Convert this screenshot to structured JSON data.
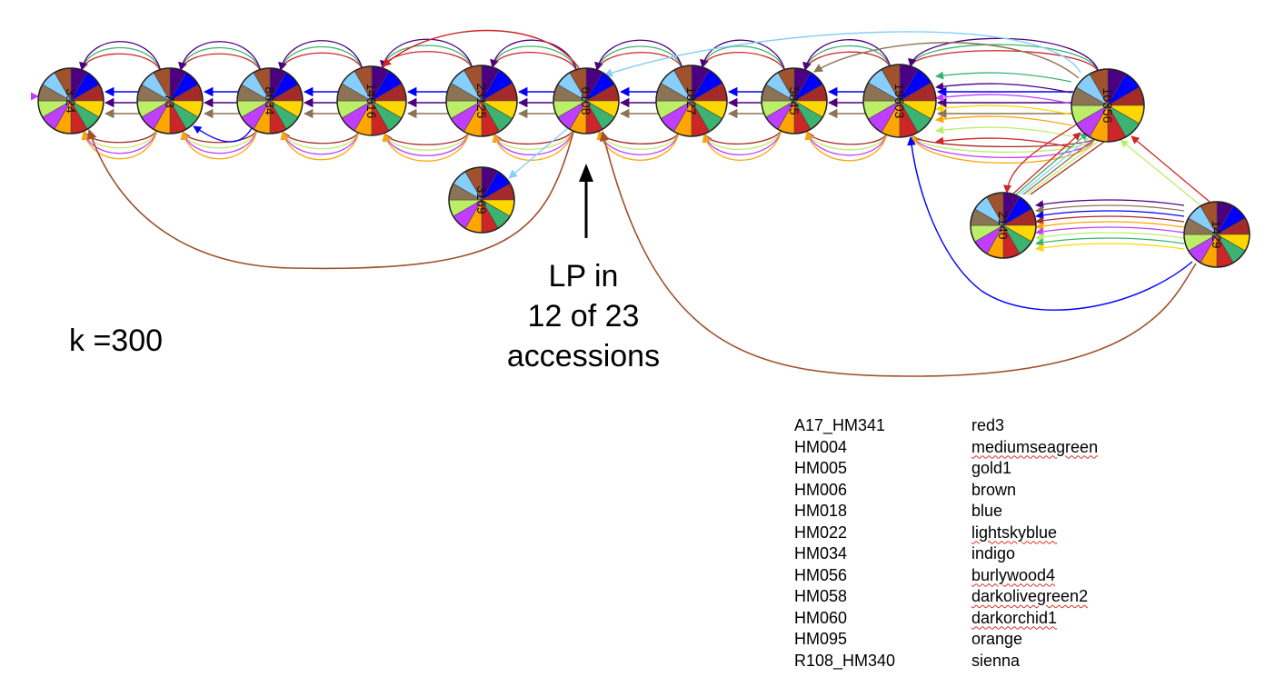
{
  "k_label": "k =300",
  "annotation": {
    "lines": [
      "LP in",
      "12 of 23",
      "accessions"
    ]
  },
  "nodes": [
    {
      "id": "n1",
      "label": "3.24"
    },
    {
      "id": "n2",
      "label": "73"
    },
    {
      "id": "n3",
      "label": "8634"
    },
    {
      "id": "n4",
      "label": "14616"
    },
    {
      "id": "n5",
      "label": "23125"
    },
    {
      "id": "n6",
      "label": "6108"
    },
    {
      "id": "n7",
      "label": "1827"
    },
    {
      "id": "n8",
      "label": "5845"
    },
    {
      "id": "n9",
      "label": "19603"
    },
    {
      "id": "n10",
      "label": "10356"
    },
    {
      "id": "n11",
      "label": "3169"
    },
    {
      "id": "n12",
      "label": "2140"
    },
    {
      "id": "n13",
      "label": "1429"
    }
  ],
  "legend": [
    {
      "accession": "A17_HM341",
      "color_name": "red3",
      "hex": "#cd2626",
      "squiggle": false
    },
    {
      "accession": "HM004",
      "color_name": "mediumseagreen",
      "hex": "#3cb371",
      "squiggle": true
    },
    {
      "accession": "HM005",
      "color_name": "gold1",
      "hex": "#ffd700",
      "squiggle": false
    },
    {
      "accession": "HM006",
      "color_name": "brown",
      "hex": "#a52a2a",
      "squiggle": false
    },
    {
      "accession": "HM018",
      "color_name": "blue",
      "hex": "#0000ff",
      "squiggle": false
    },
    {
      "accession": "HM022",
      "color_name": "lightskyblue",
      "hex": "#87cefa",
      "squiggle": true
    },
    {
      "accession": "HM034",
      "color_name": "indigo",
      "hex": "#4b0082",
      "squiggle": false
    },
    {
      "accession": "HM056",
      "color_name": "burlywood4",
      "hex": "#8b7355",
      "squiggle": true
    },
    {
      "accession": "HM058",
      "color_name": "darkolivegreen2",
      "hex": "#bcee68",
      "squiggle": true
    },
    {
      "accession": "HM060",
      "color_name": "darkorchid1",
      "hex": "#bf3eff",
      "squiggle": true
    },
    {
      "accession": "HM095",
      "color_name": "orange",
      "hex": "#ffa500",
      "squiggle": false
    },
    {
      "accession": "R108_HM340",
      "color_name": "sienna",
      "hex": "#a0522d",
      "squiggle": false
    }
  ]
}
